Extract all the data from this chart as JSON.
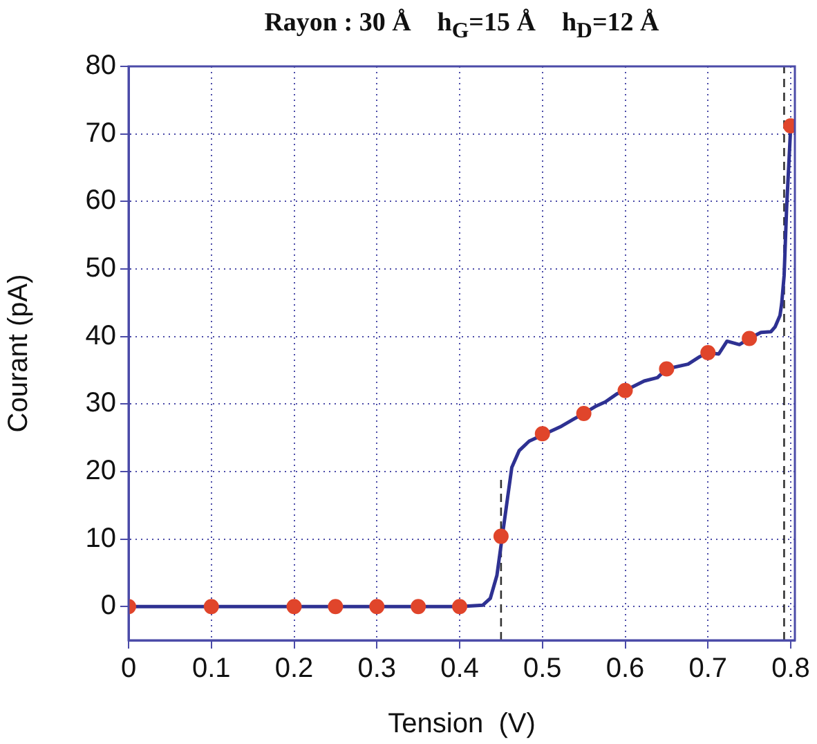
{
  "chart_data": {
    "type": "line",
    "title": "Rayon : 30 Å    h$_{G}$=15 Å    h$_{D}$=12 Å",
    "xlabel": "Tension  (V)",
    "ylabel": "Courant (pA)",
    "xlim": [
      0,
      0.805
    ],
    "xticks": [
      0,
      0.1,
      0.2,
      0.3,
      0.4,
      0.5,
      0.6,
      0.7,
      0.8
    ],
    "ylim": [
      -5,
      80
    ],
    "yticks": [
      0,
      10,
      20,
      30,
      40,
      50,
      60,
      70,
      80
    ],
    "grid": true,
    "legend": false,
    "series": [
      {
        "type": "line",
        "color": "#2e3192",
        "marker": "none",
        "line_style": "solid",
        "x": [
          0,
          0.4,
          0.428,
          0.437,
          0.445,
          0.458,
          0.463,
          0.472,
          0.484,
          0.523,
          0.537,
          0.55,
          0.565,
          0.576,
          0.59,
          0.6,
          0.623,
          0.639,
          0.65,
          0.676,
          0.69,
          0.7,
          0.713,
          0.723,
          0.738,
          0.75,
          0.764,
          0.776,
          0.781,
          0.787,
          0.789,
          0.792,
          0.795,
          0.8
        ],
        "values": [
          0,
          0,
          0.2,
          1.2,
          4.6,
          16.2,
          20.6,
          23.1,
          24.5,
          26.7,
          27.7,
          28.6,
          29.7,
          30.3,
          31.5,
          32,
          33.4,
          33.9,
          35.2,
          35.9,
          37,
          37.6,
          37.4,
          39.3,
          38.8,
          39.7,
          40.6,
          40.7,
          41.4,
          43.1,
          44.8,
          49,
          59,
          71.2
        ]
      },
      {
        "type": "scatter",
        "color": "#e0452b",
        "marker": "circle",
        "x": [
          0,
          0.1,
          0.2,
          0.25,
          0.3,
          0.35,
          0.4,
          0.45,
          0.5,
          0.55,
          0.6,
          0.65,
          0.7,
          0.75,
          0.8
        ],
        "values": [
          0,
          0,
          0,
          0,
          0,
          0,
          0,
          10.4,
          25.6,
          28.6,
          32,
          35.2,
          37.6,
          39.7,
          71.2
        ]
      },
      {
        "type": "line",
        "color": "#333333",
        "marker": "none",
        "line_style": "dashed",
        "x": [
          0.45,
          0.45
        ],
        "values": [
          -5,
          19
        ]
      },
      {
        "type": "line",
        "color": "#333333",
        "marker": "none",
        "line_style": "dashed",
        "x": [
          0.792,
          0.792
        ],
        "values": [
          -5,
          80
        ]
      }
    ]
  }
}
